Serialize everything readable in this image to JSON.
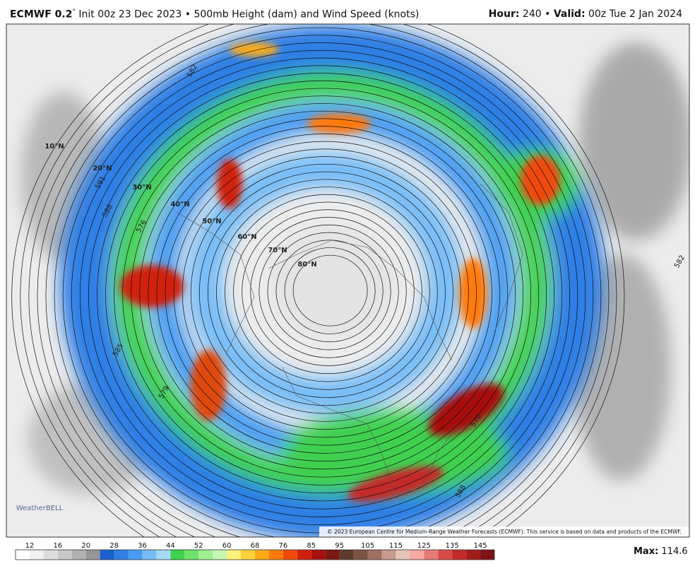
{
  "header": {
    "model": "ECMWF 0.2",
    "degree": "°",
    "subtitle": " Init 00z 23 Dec 2023 • 500mb Height (dam) and Wind Speed (knots)",
    "hour_label": "Hour:",
    "hour": " 240 • ",
    "valid_label": "Valid:",
    "valid": " 00z Tue 2 Jan 2024"
  },
  "map": {
    "latitude_labels": [
      "10°N",
      "20°N",
      "30°N",
      "40°N",
      "50°N",
      "60°N",
      "70°N",
      "80°N"
    ],
    "contour_labels": [
      "576",
      "582",
      "588",
      "585",
      "579",
      "570",
      "588",
      "591",
      "582"
    ],
    "logo": "WeatherBELL",
    "copyright": "© 2023 European Centre for Medium-Range Weather Forecasts (ECMWF). This service is based on data and products of the ECMWF."
  },
  "colorbar": {
    "ticks": [
      12,
      16,
      20,
      28,
      36,
      44,
      52,
      60,
      68,
      76,
      85,
      95,
      105,
      115,
      125,
      135,
      145
    ],
    "colors": [
      "#ffffff",
      "#f0f0f0",
      "#dcdcdc",
      "#c8c8c8",
      "#b0b0b0",
      "#969696",
      "#1b5fd0",
      "#2f7fe6",
      "#4a9cf2",
      "#78bdf7",
      "#a6d9fb",
      "#3fd050",
      "#6ee36a",
      "#9ef090",
      "#c6f6b3",
      "#fff27a",
      "#ffd13a",
      "#ffaa17",
      "#ff7a0a",
      "#f04a0a",
      "#d0200a",
      "#a80f0f",
      "#7a1a10",
      "#5e3a2c",
      "#7c5444",
      "#a07060",
      "#c49b8c",
      "#e6c3b8",
      "#f4a8a0",
      "#e87a74",
      "#d84a48",
      "#c42a2a",
      "#a21c1c",
      "#7e1414"
    ],
    "max_label": "Max:",
    "max": " 114.6"
  }
}
